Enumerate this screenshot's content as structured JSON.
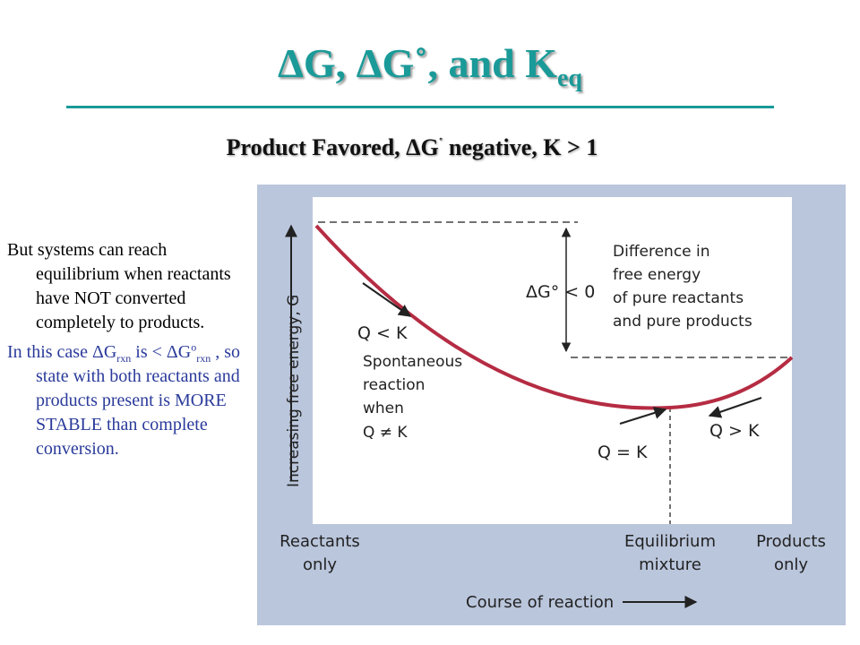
{
  "slide": {
    "title": {
      "main": "ΔG, ΔG˚, and K",
      "sub": "eq"
    },
    "subtitle": {
      "part1": "Product Favored, ΔG",
      "sup": "˚",
      "part2": " negative, K > 1"
    }
  },
  "bullets": {
    "first": "But systems can reach equilibrium when reactants have NOT converted completely to products.",
    "second": {
      "p1": "In this case ΔG",
      "sub1": "rxn",
      "p2": " is  < ΔG",
      "sup2": "o",
      "sub2": "rxn",
      "p3": " , so state with both reactants and products present is MORE STABLE than complete conversion."
    }
  },
  "figure": {
    "y_axis_label": "Increasing free energy, G",
    "x_axis_label": "Course of reaction",
    "x_ticks": {
      "reactants": [
        "Reactants",
        "only"
      ],
      "equilibrium": [
        "Equilibrium",
        "mixture"
      ],
      "products": [
        "Products",
        "only"
      ]
    },
    "delta_g": "ΔG° < 0",
    "difference_note": [
      "Difference in",
      "free energy",
      "of pure reactants",
      "and pure products"
    ],
    "q_less": "Q < K",
    "spontaneous": [
      "Spontaneous",
      "reaction",
      "when",
      "Q ≠ K"
    ],
    "q_equal": "Q = K",
    "q_greater": "Q > K",
    "colors": {
      "curve": "#b52c43",
      "panel": "#bac6dc",
      "title": "#1a9a98"
    }
  }
}
